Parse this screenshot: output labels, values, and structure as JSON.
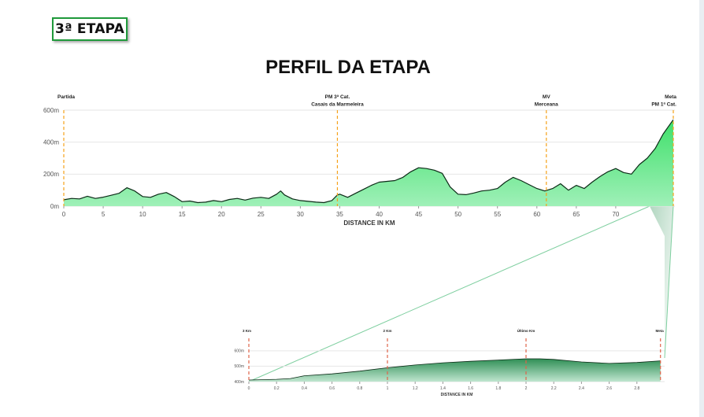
{
  "header": {
    "stage_badge": "3ª ETAPA",
    "title": "PERFIL DA ETAPA"
  },
  "colors": {
    "profile_fill_top": "#3fe06a",
    "profile_fill_bottom": "#9ff0b8",
    "profile_stroke": "#0c2b17",
    "marker_line": "#f5a21a",
    "zoom_fill_top": "#2f8f55",
    "zoom_fill_bottom": "#bfe6cf",
    "zoom_marker": "#e0644a",
    "grid": "#e6e6e6",
    "badge_border": "#1f9a3b"
  },
  "chart_data": [
    {
      "type": "area",
      "name": "full-stage-profile",
      "xlabel": "DISTANCE IN KM",
      "ylabel": "",
      "xlim": [
        0,
        77.5
      ],
      "ylim": [
        0,
        600
      ],
      "xticks": [
        0,
        5,
        10,
        15,
        20,
        25,
        30,
        35,
        40,
        45,
        50,
        55,
        60,
        65,
        70
      ],
      "yticks": [
        0,
        200,
        400,
        600
      ],
      "ytick_labels": [
        "0m",
        "200m",
        "400m",
        "600m"
      ],
      "grid": true,
      "markers": [
        {
          "x": 0,
          "lines": [
            "Partida"
          ]
        },
        {
          "x": 34.7,
          "lines": [
            "PM 3ª Cat.",
            "Casais da Marmeleira"
          ]
        },
        {
          "x": 61.2,
          "lines": [
            "MV",
            "Merceana"
          ]
        },
        {
          "x": 77.3,
          "lines": [
            "Meta",
            "PM 1ª Cat."
          ]
        }
      ],
      "x": [
        0,
        1,
        2,
        3,
        4,
        5,
        6,
        7,
        8,
        9,
        10,
        11,
        12,
        13,
        14,
        15,
        16,
        17,
        18,
        19,
        20,
        21,
        22,
        23,
        24,
        25,
        26,
        27,
        27.5,
        28,
        29,
        30,
        31,
        32,
        33,
        34,
        34.7,
        35,
        36,
        37,
        38,
        39,
        40,
        41,
        42,
        43,
        44,
        45,
        46,
        47,
        48,
        49,
        50,
        51,
        52,
        53,
        54,
        55,
        56,
        57,
        58,
        59,
        60,
        61,
        62,
        63,
        64,
        65,
        66,
        67,
        68,
        69,
        70,
        71,
        72,
        73,
        74,
        75,
        76,
        77,
        77.3
      ],
      "y": [
        40,
        48,
        45,
        62,
        48,
        56,
        68,
        80,
        115,
        95,
        60,
        55,
        75,
        85,
        60,
        28,
        32,
        22,
        25,
        35,
        28,
        42,
        48,
        38,
        50,
        55,
        48,
        75,
        95,
        70,
        45,
        35,
        30,
        25,
        22,
        35,
        70,
        75,
        55,
        80,
        105,
        130,
        150,
        155,
        160,
        180,
        215,
        240,
        235,
        225,
        205,
        120,
        75,
        72,
        82,
        95,
        100,
        110,
        150,
        180,
        160,
        135,
        110,
        95,
        110,
        140,
        100,
        130,
        110,
        150,
        185,
        215,
        235,
        210,
        200,
        260,
        300,
        360,
        450,
        520,
        540
      ]
    },
    {
      "type": "area",
      "name": "final-3km-profile",
      "xlabel": "DISTANCE IN KM",
      "ylabel": "",
      "xlim": [
        0,
        3
      ],
      "ylim": [
        400,
        630
      ],
      "xticks": [
        0,
        0.2,
        0.4,
        0.6,
        0.8,
        1,
        1.2,
        1.4,
        1.6,
        1.8,
        2,
        2.2,
        2.4,
        2.6,
        2.8
      ],
      "yticks": [
        400,
        500,
        600
      ],
      "ytick_labels": [
        "400m",
        "500m",
        "600m"
      ],
      "grid": true,
      "markers": [
        {
          "x": 0,
          "lines": [
            "3 Km"
          ]
        },
        {
          "x": 1,
          "lines": [
            "2 Km"
          ]
        },
        {
          "x": 2,
          "lines": [
            "Último Km"
          ]
        },
        {
          "x": 2.97,
          "lines": [
            "Meta"
          ]
        }
      ],
      "x": [
        0,
        0.2,
        0.3,
        0.4,
        0.6,
        0.8,
        1.0,
        1.2,
        1.4,
        1.6,
        1.8,
        2.0,
        2.1,
        2.2,
        2.4,
        2.6,
        2.8,
        2.97
      ],
      "y": [
        410,
        415,
        420,
        438,
        450,
        468,
        490,
        508,
        522,
        532,
        540,
        548,
        548,
        544,
        528,
        518,
        524,
        535
      ]
    }
  ]
}
